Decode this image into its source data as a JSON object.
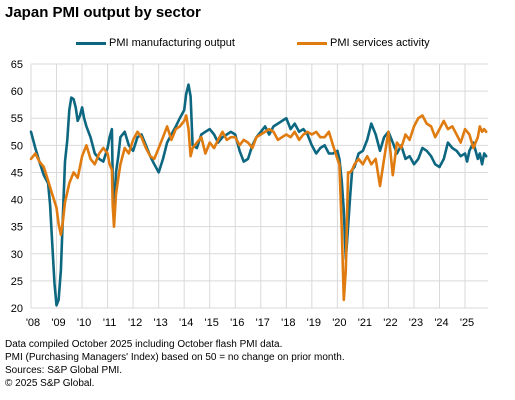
{
  "chart_data": {
    "type": "line",
    "title": "Japan PMI output by sector",
    "xlabel": "",
    "ylabel": "",
    "ylim": [
      20,
      65
    ],
    "yticks": [
      20,
      25,
      30,
      35,
      40,
      45,
      50,
      55,
      60,
      65
    ],
    "xlim": [
      2008.0,
      2025.9
    ],
    "xtick_labels": [
      "'08",
      "'09",
      "'10",
      "'11",
      "'12",
      "'13",
      "'14",
      "'15",
      "'16",
      "'17",
      "'18",
      "'19",
      "'20",
      "'21",
      "'22",
      "'23",
      "'24",
      "'25"
    ],
    "grid": true,
    "legend_position": "top",
    "series": [
      {
        "name": "PMI manufacturing output",
        "color": "#0d6780",
        "points": [
          [
            2008.0,
            52.5
          ],
          [
            2008.17,
            49.5
          ],
          [
            2008.33,
            47.0
          ],
          [
            2008.5,
            44.5
          ],
          [
            2008.67,
            43.0
          ],
          [
            2008.75,
            39.0
          ],
          [
            2008.83,
            32.0
          ],
          [
            2008.92,
            24.5
          ],
          [
            2009.0,
            20.5
          ],
          [
            2009.08,
            21.5
          ],
          [
            2009.17,
            27.0
          ],
          [
            2009.25,
            37.0
          ],
          [
            2009.33,
            47.0
          ],
          [
            2009.42,
            51.0
          ],
          [
            2009.5,
            56.5
          ],
          [
            2009.58,
            58.8
          ],
          [
            2009.67,
            58.5
          ],
          [
            2009.75,
            57.0
          ],
          [
            2009.83,
            54.5
          ],
          [
            2009.92,
            55.5
          ],
          [
            2010.0,
            57.0
          ],
          [
            2010.08,
            55.0
          ],
          [
            2010.17,
            53.5
          ],
          [
            2010.33,
            51.5
          ],
          [
            2010.5,
            48.5
          ],
          [
            2010.67,
            47.5
          ],
          [
            2010.83,
            47.0
          ],
          [
            2011.0,
            49.5
          ],
          [
            2011.08,
            51.5
          ],
          [
            2011.17,
            53.0
          ],
          [
            2011.2,
            44.0
          ],
          [
            2011.25,
            36.5
          ],
          [
            2011.33,
            45.0
          ],
          [
            2011.42,
            48.0
          ],
          [
            2011.5,
            51.5
          ],
          [
            2011.67,
            52.5
          ],
          [
            2011.83,
            50.0
          ],
          [
            2012.0,
            49.0
          ],
          [
            2012.17,
            51.5
          ],
          [
            2012.33,
            52.0
          ],
          [
            2012.5,
            50.0
          ],
          [
            2012.67,
            48.0
          ],
          [
            2012.83,
            46.5
          ],
          [
            2013.0,
            45.0
          ],
          [
            2013.17,
            47.5
          ],
          [
            2013.33,
            50.5
          ],
          [
            2013.5,
            52.0
          ],
          [
            2013.67,
            53.5
          ],
          [
            2013.83,
            55.0
          ],
          [
            2014.0,
            56.5
          ],
          [
            2014.08,
            59.5
          ],
          [
            2014.17,
            61.2
          ],
          [
            2014.25,
            59.0
          ],
          [
            2014.33,
            50.0
          ],
          [
            2014.5,
            49.5
          ],
          [
            2014.67,
            52.0
          ],
          [
            2014.83,
            52.5
          ],
          [
            2015.0,
            53.0
          ],
          [
            2015.17,
            52.0
          ],
          [
            2015.33,
            50.5
          ],
          [
            2015.5,
            51.5
          ],
          [
            2015.67,
            52.0
          ],
          [
            2015.83,
            52.5
          ],
          [
            2016.0,
            52.0
          ],
          [
            2016.17,
            49.0
          ],
          [
            2016.33,
            47.0
          ],
          [
            2016.5,
            47.5
          ],
          [
            2016.67,
            50.0
          ],
          [
            2016.83,
            51.5
          ],
          [
            2017.0,
            52.5
          ],
          [
            2017.17,
            53.5
          ],
          [
            2017.33,
            52.0
          ],
          [
            2017.5,
            53.5
          ],
          [
            2017.67,
            54.0
          ],
          [
            2017.83,
            54.5
          ],
          [
            2018.0,
            55.0
          ],
          [
            2018.17,
            53.0
          ],
          [
            2018.33,
            54.0
          ],
          [
            2018.5,
            52.5
          ],
          [
            2018.67,
            53.0
          ],
          [
            2018.83,
            52.0
          ],
          [
            2019.0,
            50.0
          ],
          [
            2019.17,
            48.5
          ],
          [
            2019.33,
            49.5
          ],
          [
            2019.5,
            50.0
          ],
          [
            2019.67,
            48.5
          ],
          [
            2019.83,
            48.5
          ],
          [
            2020.0,
            49.0
          ],
          [
            2020.08,
            47.5
          ],
          [
            2020.17,
            43.5
          ],
          [
            2020.25,
            38.0
          ],
          [
            2020.33,
            29.0
          ],
          [
            2020.42,
            35.0
          ],
          [
            2020.5,
            40.5
          ],
          [
            2020.58,
            45.5
          ],
          [
            2020.67,
            46.0
          ],
          [
            2020.83,
            48.5
          ],
          [
            2021.0,
            49.0
          ],
          [
            2021.17,
            51.0
          ],
          [
            2021.33,
            54.0
          ],
          [
            2021.5,
            52.0
          ],
          [
            2021.67,
            49.0
          ],
          [
            2021.83,
            51.5
          ],
          [
            2022.0,
            52.5
          ],
          [
            2022.17,
            50.5
          ],
          [
            2022.33,
            48.5
          ],
          [
            2022.5,
            50.0
          ],
          [
            2022.67,
            47.5
          ],
          [
            2022.83,
            48.0
          ],
          [
            2023.0,
            46.5
          ],
          [
            2023.17,
            47.5
          ],
          [
            2023.33,
            49.5
          ],
          [
            2023.5,
            49.0
          ],
          [
            2023.67,
            48.0
          ],
          [
            2023.83,
            46.5
          ],
          [
            2024.0,
            46.0
          ],
          [
            2024.17,
            47.5
          ],
          [
            2024.33,
            50.5
          ],
          [
            2024.5,
            49.5
          ],
          [
            2024.67,
            49.0
          ],
          [
            2024.83,
            48.0
          ],
          [
            2025.0,
            48.5
          ],
          [
            2025.08,
            47.0
          ],
          [
            2025.17,
            49.0
          ],
          [
            2025.33,
            50.5
          ],
          [
            2025.5,
            47.5
          ],
          [
            2025.58,
            48.5
          ],
          [
            2025.67,
            46.5
          ],
          [
            2025.75,
            48.5
          ],
          [
            2025.83,
            48.0
          ]
        ]
      },
      {
        "name": "PMI services activity",
        "color": "#e07b0f",
        "points": [
          [
            2008.0,
            47.5
          ],
          [
            2008.17,
            48.5
          ],
          [
            2008.33,
            47.0
          ],
          [
            2008.5,
            46.0
          ],
          [
            2008.67,
            43.5
          ],
          [
            2008.83,
            41.0
          ],
          [
            2009.0,
            38.5
          ],
          [
            2009.08,
            35.5
          ],
          [
            2009.17,
            33.5
          ],
          [
            2009.25,
            36.0
          ],
          [
            2009.33,
            39.5
          ],
          [
            2009.5,
            43.0
          ],
          [
            2009.67,
            45.0
          ],
          [
            2009.83,
            44.0
          ],
          [
            2010.0,
            48.0
          ],
          [
            2010.17,
            50.0
          ],
          [
            2010.33,
            47.5
          ],
          [
            2010.5,
            46.5
          ],
          [
            2010.67,
            48.5
          ],
          [
            2010.83,
            49.5
          ],
          [
            2011.0,
            48.5
          ],
          [
            2011.08,
            46.5
          ],
          [
            2011.17,
            45.5
          ],
          [
            2011.2,
            39.0
          ],
          [
            2011.25,
            35.0
          ],
          [
            2011.33,
            41.0
          ],
          [
            2011.42,
            44.0
          ],
          [
            2011.5,
            46.5
          ],
          [
            2011.67,
            49.5
          ],
          [
            2011.83,
            48.5
          ],
          [
            2012.0,
            51.0
          ],
          [
            2012.17,
            52.5
          ],
          [
            2012.33,
            51.5
          ],
          [
            2012.5,
            49.5
          ],
          [
            2012.67,
            48.0
          ],
          [
            2012.83,
            47.5
          ],
          [
            2013.0,
            49.5
          ],
          [
            2013.17,
            51.5
          ],
          [
            2013.33,
            53.5
          ],
          [
            2013.5,
            51.0
          ],
          [
            2013.67,
            53.0
          ],
          [
            2013.83,
            53.5
          ],
          [
            2014.0,
            54.5
          ],
          [
            2014.08,
            55.5
          ],
          [
            2014.17,
            53.0
          ],
          [
            2014.25,
            48.0
          ],
          [
            2014.33,
            49.5
          ],
          [
            2014.5,
            50.5
          ],
          [
            2014.67,
            51.5
          ],
          [
            2014.83,
            48.5
          ],
          [
            2015.0,
            50.5
          ],
          [
            2015.17,
            49.5
          ],
          [
            2015.33,
            51.0
          ],
          [
            2015.5,
            52.5
          ],
          [
            2015.67,
            51.0
          ],
          [
            2015.83,
            51.5
          ],
          [
            2016.0,
            51.5
          ],
          [
            2016.17,
            50.0
          ],
          [
            2016.33,
            51.0
          ],
          [
            2016.5,
            50.5
          ],
          [
            2016.67,
            49.5
          ],
          [
            2016.83,
            51.5
          ],
          [
            2017.0,
            52.0
          ],
          [
            2017.17,
            52.5
          ],
          [
            2017.33,
            53.0
          ],
          [
            2017.5,
            52.5
          ],
          [
            2017.67,
            51.0
          ],
          [
            2017.83,
            51.5
          ],
          [
            2018.0,
            52.0
          ],
          [
            2018.17,
            51.5
          ],
          [
            2018.33,
            52.5
          ],
          [
            2018.5,
            51.0
          ],
          [
            2018.67,
            52.0
          ],
          [
            2018.83,
            52.5
          ],
          [
            2019.0,
            52.0
          ],
          [
            2019.17,
            52.5
          ],
          [
            2019.33,
            51.5
          ],
          [
            2019.5,
            51.5
          ],
          [
            2019.67,
            52.5
          ],
          [
            2019.83,
            50.0
          ],
          [
            2020.0,
            47.5
          ],
          [
            2020.08,
            46.5
          ],
          [
            2020.17,
            35.0
          ],
          [
            2020.25,
            21.5
          ],
          [
            2020.33,
            27.0
          ],
          [
            2020.42,
            45.0
          ],
          [
            2020.5,
            45.0
          ],
          [
            2020.58,
            45.5
          ],
          [
            2020.67,
            46.5
          ],
          [
            2020.83,
            47.5
          ],
          [
            2021.0,
            46.5
          ],
          [
            2021.17,
            48.0
          ],
          [
            2021.33,
            46.5
          ],
          [
            2021.5,
            47.5
          ],
          [
            2021.67,
            42.5
          ],
          [
            2021.83,
            47.5
          ],
          [
            2022.0,
            52.5
          ],
          [
            2022.17,
            44.5
          ],
          [
            2022.33,
            50.5
          ],
          [
            2022.5,
            49.5
          ],
          [
            2022.67,
            52.0
          ],
          [
            2022.83,
            51.0
          ],
          [
            2023.0,
            53.5
          ],
          [
            2023.17,
            55.0
          ],
          [
            2023.33,
            55.5
          ],
          [
            2023.5,
            54.0
          ],
          [
            2023.67,
            53.5
          ],
          [
            2023.83,
            51.5
          ],
          [
            2024.0,
            53.0
          ],
          [
            2024.17,
            54.5
          ],
          [
            2024.33,
            53.0
          ],
          [
            2024.5,
            53.5
          ],
          [
            2024.67,
            52.0
          ],
          [
            2024.83,
            50.5
          ],
          [
            2025.0,
            53.0
          ],
          [
            2025.17,
            52.0
          ],
          [
            2025.33,
            49.5
          ],
          [
            2025.5,
            51.5
          ],
          [
            2025.58,
            53.5
          ],
          [
            2025.67,
            52.5
          ],
          [
            2025.75,
            53.0
          ],
          [
            2025.83,
            52.5
          ]
        ]
      }
    ]
  },
  "notes": [
    "Data compiled October 2025 including October flash PMI data.",
    "PMI (Purchasing Managers' Index) based on 50 = no change on prior month.",
    "Sources: S&P Global PMI.",
    "© 2025 S&P Global."
  ]
}
